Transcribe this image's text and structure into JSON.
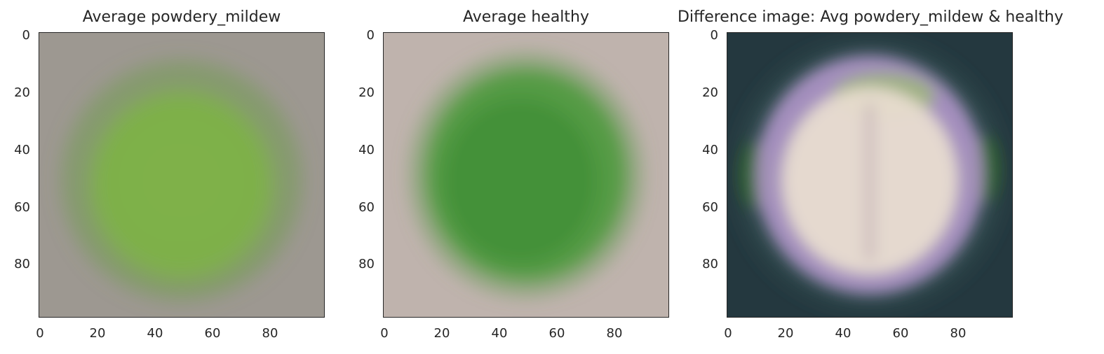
{
  "panels": [
    {
      "title": "Average powdery_mildew",
      "background_color": "#9d9891",
      "blob_color": "#7fb14a",
      "blob_edge_color": "#6e9a4c",
      "yticks": [
        "0",
        "20",
        "40",
        "60",
        "80"
      ],
      "xticks": [
        "0",
        "20",
        "40",
        "60",
        "80"
      ]
    },
    {
      "title": "Average healthy",
      "background_color": "#bfb3ad",
      "blob_color": "#4f9a3e",
      "blob_edge_color": "#6c9c5a",
      "yticks": [
        "0",
        "20",
        "40",
        "60",
        "80"
      ],
      "xticks": [
        "0",
        "20",
        "40",
        "60",
        "80"
      ]
    },
    {
      "title": "Difference image: Avg powdery_mildew & healthy",
      "background_color": "#24383f",
      "blob_color": "#e8dcd0",
      "ring_color": "#b79ad0",
      "green_accent": "#2e6a1c",
      "yticks": [
        "0",
        "20",
        "40",
        "60",
        "80"
      ],
      "xticks": [
        "0",
        "20",
        "40",
        "60",
        "80"
      ]
    }
  ]
}
